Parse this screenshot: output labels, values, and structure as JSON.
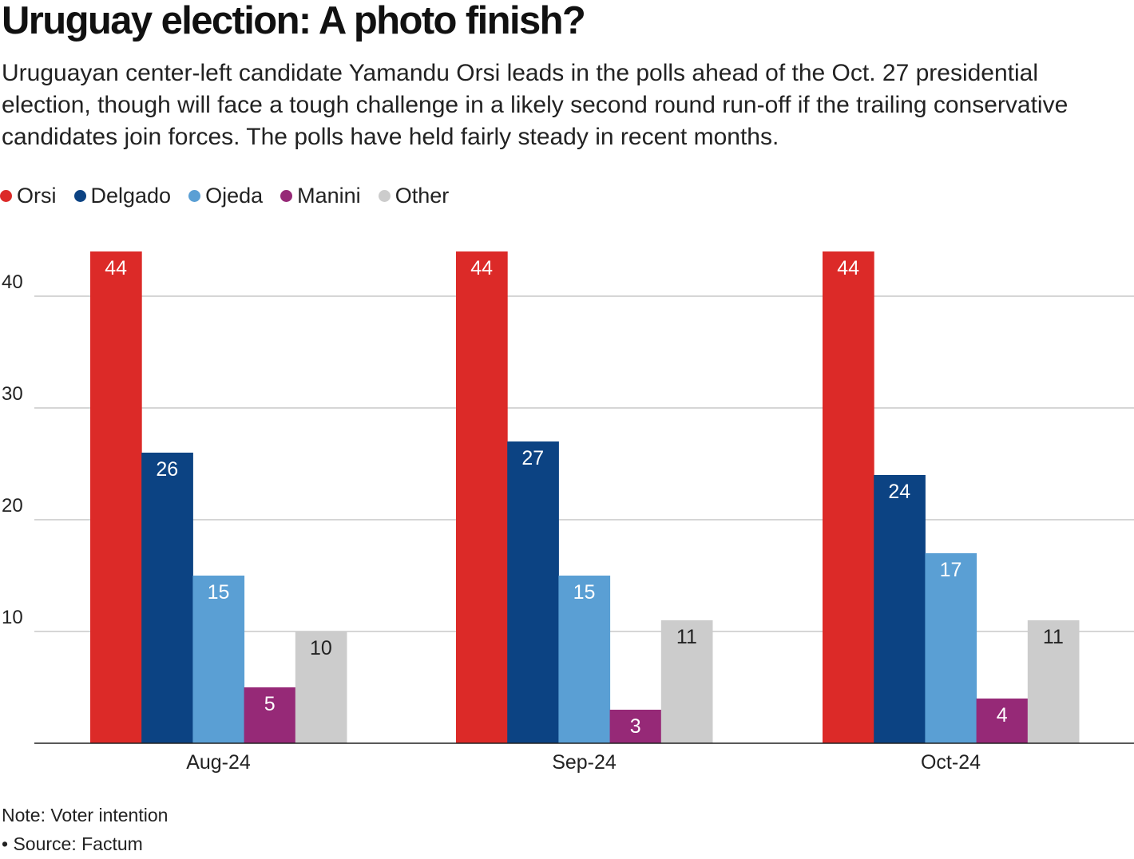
{
  "title": "Uruguay election: A photo finish?",
  "subtitle": "Uruguayan center-left candidate Yamandu Orsi leads in the polls ahead of the Oct. 27 presidential election, though will face a tough challenge in a likely second round run-off if the trailing conservative candidates join forces. The polls have held fairly steady in recent months.",
  "note": "Note: Voter intention",
  "source": "• Source: Factum",
  "chart_data": {
    "type": "bar",
    "title": "Uruguay election: A photo finish?",
    "xlabel": "",
    "ylabel": "",
    "categories": [
      "Aug-24",
      "Sep-24",
      "Oct-24"
    ],
    "ylim": [
      0,
      44
    ],
    "yticks": [
      10,
      20,
      30,
      40
    ],
    "grid": true,
    "legend_position": "top-left",
    "series": [
      {
        "name": "Orsi",
        "color": "#dc2a28",
        "label_color": "#ffffff",
        "values": [
          44,
          44,
          44
        ]
      },
      {
        "name": "Delgado",
        "color": "#0c4383",
        "label_color": "#ffffff",
        "values": [
          26,
          27,
          24
        ]
      },
      {
        "name": "Ojeda",
        "color": "#5a9fd4",
        "label_color": "#ffffff",
        "values": [
          15,
          15,
          17
        ]
      },
      {
        "name": "Manini",
        "color": "#962977",
        "label_color": "#ffffff",
        "values": [
          5,
          3,
          4
        ]
      },
      {
        "name": "Other",
        "color": "#cccccc",
        "label_color": "#222222",
        "values": [
          10,
          11,
          11
        ]
      }
    ]
  }
}
